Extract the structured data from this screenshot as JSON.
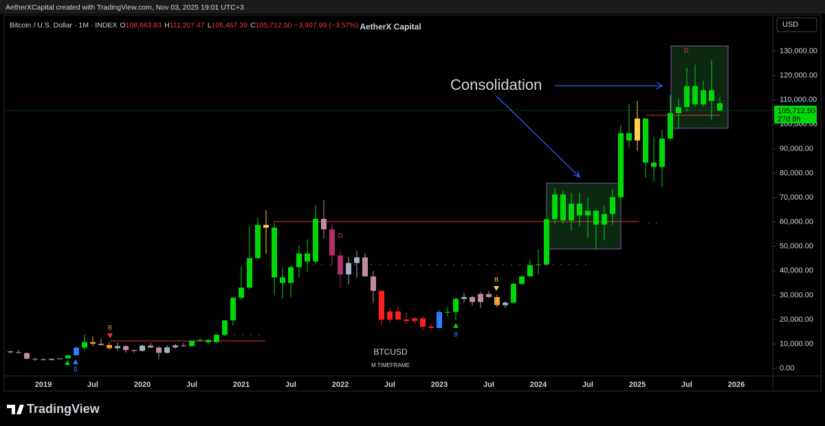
{
  "chart_data": {
    "type": "candlestick",
    "created_by": "AetherXCapital created with TradingView.com, Nov 03, 2025 19:01 UTC+3",
    "symbol": "Bitcoin / U.S. Dollar · 1M · INDEX",
    "ohlc_header": [
      {
        "key": "O",
        "value": "108,663.83"
      },
      {
        "key": "H",
        "value": "111,207.47"
      },
      {
        "key": "L",
        "value": "105,467.39"
      },
      {
        "key": "C",
        "value": "105,712.50"
      }
    ],
    "change": "−3,907.99 (−3.57%)",
    "title": "AetherX Capital",
    "currency": "USD",
    "watermark": "BTCUSD",
    "watermark_sub": "M TIMEFRAME",
    "annotation": "Consolidation",
    "last_price_label": "105,712.50",
    "countdown": "27d 8h",
    "brand": "TradingView",
    "signal_labels": [
      "B",
      "B",
      "B",
      "B",
      "D",
      "D"
    ],
    "categories": [
      null,
      null,
      null,
      null,
      "2019",
      null,
      null,
      null,
      null,
      null,
      "Jul",
      null,
      null,
      null,
      null,
      null,
      "2020",
      null,
      null,
      null,
      null,
      null,
      "Jul",
      null,
      null,
      null,
      null,
      null,
      "2021",
      null,
      null,
      null,
      null,
      null,
      "Jul",
      null,
      null,
      null,
      null,
      null,
      "2022",
      null,
      null,
      null,
      null,
      null,
      "Jul",
      null,
      null,
      null,
      null,
      null,
      "2023",
      null,
      null,
      null,
      null,
      null,
      "Jul",
      null,
      null,
      null,
      null,
      null,
      "2024",
      null,
      null,
      null,
      null,
      null,
      "Jul",
      null,
      null,
      null,
      null,
      null,
      "2025",
      null,
      null,
      null,
      null,
      null,
      "Jul",
      null,
      null,
      null,
      null,
      null,
      "2026",
      null,
      null,
      null
    ],
    "open": [
      7000,
      6600,
      6300,
      4000,
      3700,
      3450,
      3850,
      4100,
      5350,
      8550,
      10800,
      10100,
      9600,
      8300,
      9150,
      7550,
      7200,
      9350,
      8550,
      6400,
      8650,
      9450,
      9150,
      11350,
      11650,
      10780,
      13800,
      19700,
      28990,
      33100,
      45200,
      58800,
      57700,
      37300,
      35050,
      41500,
      47100,
      43800,
      61300,
      57000,
      46300,
      38500,
      43200,
      45500,
      37700,
      31800,
      19950,
      23300,
      20050,
      19450,
      20500,
      17150,
      16550,
      23150,
      23150,
      28500,
      29250,
      27200,
      30480,
      29250,
      25950,
      26950,
      34650,
      37700,
      42300,
      42600,
      61150,
      71300,
      60650,
      67500,
      62700,
      64600,
      58950,
      63300,
      70200,
      96400,
      93400,
      102400,
      84350,
      82550,
      94200,
      104600,
      107100,
      115700,
      108200,
      114000,
      108663.83,
      null,
      null,
      null,
      null,
      null
    ],
    "high": [
      7400,
      7500,
      6600,
      4200,
      4100,
      4200,
      4150,
      5650,
      9100,
      13900,
      13200,
      12300,
      10950,
      10500,
      9500,
      7750,
      9600,
      10500,
      9200,
      9450,
      10100,
      10400,
      11450,
      12470,
      12050,
      14100,
      19900,
      29300,
      41950,
      58350,
      61800,
      64850,
      59600,
      41300,
      42300,
      50500,
      52950,
      67000,
      69000,
      59100,
      47990,
      45800,
      48200,
      47400,
      40000,
      31950,
      24700,
      25200,
      22800,
      21100,
      21500,
      18400,
      23950,
      25250,
      29200,
      31000,
      29850,
      31450,
      31800,
      30200,
      27500,
      35200,
      38450,
      44700,
      48950,
      63900,
      73800,
      72800,
      71950,
      71950,
      70000,
      65100,
      66500,
      73600,
      99800,
      108300,
      109600,
      102500,
      95000,
      97900,
      111900,
      110500,
      123200,
      124500,
      117900,
      126200,
      111207.47,
      null,
      null,
      null,
      null,
      null
    ],
    "low": [
      6100,
      6200,
      3600,
      3100,
      3350,
      3400,
      3700,
      4050,
      5330,
      7500,
      9100,
      9300,
      7700,
      7300,
      6500,
      6430,
      6850,
      8450,
      3850,
      6150,
      8100,
      8900,
      8950,
      10950,
      9900,
      10400,
      13200,
      17600,
      28130,
      32300,
      44950,
      47000,
      30000,
      28800,
      29300,
      37330,
      39600,
      43300,
      53300,
      42000,
      32950,
      34300,
      37200,
      37700,
      26700,
      17600,
      18800,
      19600,
      18150,
      18200,
      15500,
      16250,
      16500,
      21350,
      19550,
      26950,
      25800,
      24800,
      28850,
      25150,
      24900,
      26550,
      34100,
      37600,
      38500,
      41900,
      59300,
      59200,
      56550,
      58400,
      53500,
      49100,
      52550,
      58900,
      66800,
      90500,
      89200,
      78200,
      76600,
      74400,
      93400,
      98200,
      105300,
      107300,
      107300,
      102000,
      105467.39,
      null,
      null,
      null,
      null,
      null
    ],
    "close": [
      6600,
      6300,
      4000,
      3700,
      3450,
      3850,
      4100,
      5350,
      8550,
      10800,
      10100,
      9600,
      8300,
      9150,
      7550,
      7200,
      9350,
      8550,
      6400,
      8650,
      9450,
      9150,
      11350,
      11650,
      10780,
      13800,
      19700,
      28990,
      33100,
      45200,
      58800,
      57700,
      37300,
      35050,
      41500,
      47100,
      43800,
      61300,
      57000,
      46300,
      38500,
      43200,
      45500,
      37700,
      31800,
      19950,
      23300,
      20050,
      19450,
      20500,
      17150,
      16550,
      23150,
      23150,
      28500,
      29250,
      27200,
      30480,
      29250,
      25950,
      26950,
      34650,
      37700,
      42300,
      42600,
      61150,
      71300,
      60650,
      67500,
      62700,
      64600,
      58950,
      63300,
      70200,
      96400,
      93400,
      102400,
      84350,
      82550,
      94200,
      104600,
      107100,
      115700,
      108200,
      114000,
      109600,
      105712.5,
      null,
      null,
      null,
      null,
      null
    ],
    "colors": [
      "#c48b9f",
      "#c48b9f",
      "#c48b9f",
      "#c48b9f",
      "#c48b9f",
      "#9fb1c2",
      "#9fb1c2",
      "#00d80a",
      "#2a7fff",
      "#00d80a",
      "#f0a030",
      "#c48b9f",
      "#f0a030",
      "#9fb1c2",
      "#c48b9f",
      "#c48b9f",
      "#9fb1c2",
      "#c48b9f",
      "#c48b9f",
      "#9fb1c2",
      "#9fb1c2",
      "#c48b9f",
      "#00d80a",
      "#00d80a",
      "#00d80a",
      "#00d80a",
      "#00d80a",
      "#00d80a",
      "#00d80a",
      "#00d80a",
      "#00d80a",
      "#ffd24a",
      "#00d80a",
      "#00d80a",
      "#00d80a",
      "#00d80a",
      "#00d80a",
      "#00d80a",
      "#c48b9f",
      "#b0306a",
      "#b0306a",
      "#9fb1c2",
      "#9fb1c2",
      "#c48b9f",
      "#c48b9f",
      "#ff1f1f",
      "#ff1f1f",
      "#ff1f1f",
      "#ff1f1f",
      "#ff1f1f",
      "#ff1f1f",
      "#ff1f1f",
      "#2a7fff",
      "#00d80a",
      "#00d80a",
      "#9fb1c2",
      "#c48b9f",
      "#c48b9f",
      "#c48b9f",
      "#f0a030",
      "#9fb1c2",
      "#00d80a",
      "#00d80a",
      "#00d80a",
      "#00d80a",
      "#00d80a",
      "#00d80a",
      "#00d80a",
      "#00d80a",
      "#00d80a",
      "#00d80a",
      "#00d80a",
      "#00d80a",
      "#00d80a",
      "#00d80a",
      "#00d80a",
      "#ffd24a",
      "#00d80a",
      "#00d80a",
      "#00d80a",
      "#00d80a",
      "#00d80a",
      "#00d80a",
      "#00d80a",
      "#00d80a",
      "#00d80a",
      "#00d80a",
      null,
      null,
      null,
      null,
      null
    ],
    "ylim": [
      -3070,
      144790
    ],
    "yticks": [
      {
        "value": 130000,
        "label": "130,000.00"
      },
      {
        "value": 120000,
        "label": "120,000.00"
      },
      {
        "value": 110000,
        "label": "110,000.00"
      },
      {
        "value": 100000,
        "label": "100,000.00"
      },
      {
        "value": 90000,
        "label": "90,000.00"
      },
      {
        "value": 80000,
        "label": "80,000.00"
      },
      {
        "value": 70000,
        "label": "70,000.00"
      },
      {
        "value": 60000,
        "label": "60,000.00"
      },
      {
        "value": 50000,
        "label": "50,000.00"
      },
      {
        "value": 40000,
        "label": "40,000.00"
      },
      {
        "value": 30000,
        "label": "30,000.00"
      },
      {
        "value": 20000,
        "label": "20,000.00"
      },
      {
        "value": 10000,
        "label": "10,000.00"
      },
      {
        "value": 0,
        "label": "0.00"
      }
    ],
    "last_price_color": "#00d80a",
    "grid": false
  }
}
